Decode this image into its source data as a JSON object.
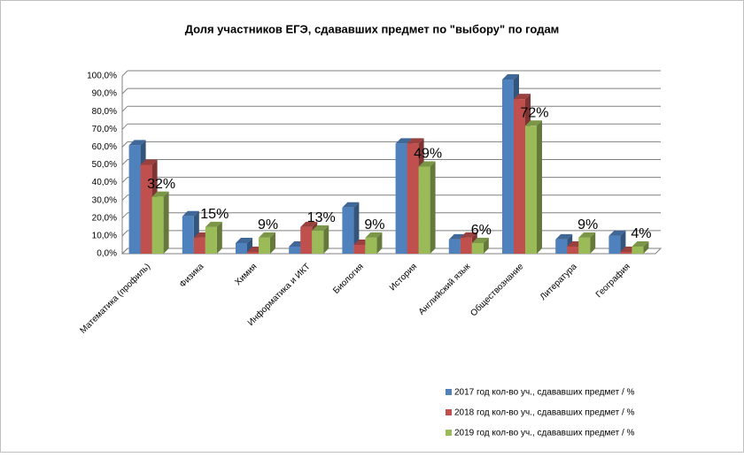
{
  "chart_data": {
    "type": "bar3d",
    "title": "Доля участников ЕГЭ, сдававших предмет по \"выбору\" по годам",
    "categories": [
      "Математика (профиль)",
      "Физика",
      "Химия",
      "Информатика и ИКТ",
      "Биология",
      "История",
      "Английский язык",
      "Обществознание",
      "Литература",
      "География"
    ],
    "series": [
      {
        "name": "2017 год кол-во уч., сдававших предмет / %",
        "color": "#4f81bd",
        "values": [
          61,
          21,
          6,
          4,
          26,
          62,
          8,
          98,
          8,
          10
        ]
      },
      {
        "name": "2018 год кол-во уч., сдававших предмет / %",
        "color": "#c0504d",
        "values": [
          50,
          9,
          1,
          15,
          5,
          62,
          9,
          87,
          4,
          1
        ]
      },
      {
        "name": "2019 год кол-во уч., сдававших предмет / %",
        "color": "#9bbb59",
        "values": [
          32,
          15,
          9,
          13,
          9,
          49,
          6,
          72,
          9,
          4
        ],
        "value_labels": [
          "32%",
          "15%",
          "9%",
          "13%",
          "9%",
          "49%",
          "6%",
          "72%",
          "9%",
          "4%"
        ]
      }
    ],
    "ylim": [
      0,
      100
    ],
    "yticks": [
      {
        "value": 0,
        "label": "0,0%"
      },
      {
        "value": 10,
        "label": "10,0%"
      },
      {
        "value": 20,
        "label": "20,0%"
      },
      {
        "value": 30,
        "label": "30,0%"
      },
      {
        "value": 40,
        "label": "40,0%"
      },
      {
        "value": 50,
        "label": "50,0%"
      },
      {
        "value": 60,
        "label": "60,0%"
      },
      {
        "value": 70,
        "label": "70,0%"
      },
      {
        "value": 80,
        "label": "80,0%"
      },
      {
        "value": 90,
        "label": "90,0%"
      },
      {
        "value": 100,
        "label": "100,0%"
      }
    ],
    "grid": true,
    "legend": "bottom-right"
  }
}
